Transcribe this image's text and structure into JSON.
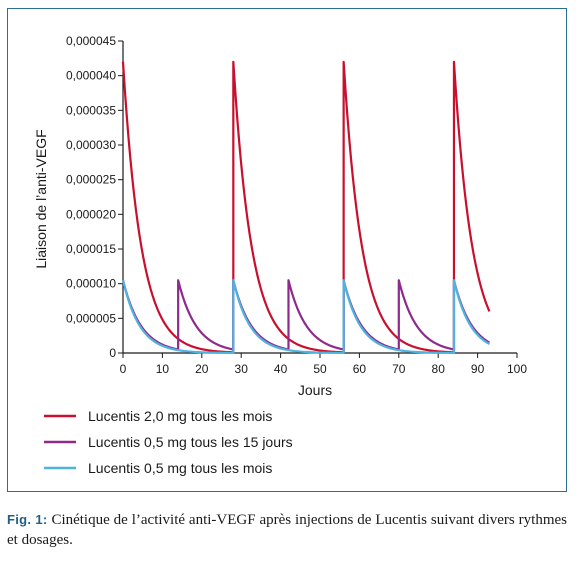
{
  "chart_data": {
    "type": "line",
    "xlabel": "Jours",
    "ylabel": "Liaison de l’anti-VEGF",
    "xlim": [
      0,
      100
    ],
    "ylim": [
      0,
      4.5e-05
    ],
    "x_ticks": [
      "0",
      "10",
      "20",
      "30",
      "40",
      "50",
      "60",
      "70",
      "80",
      "90",
      "100"
    ],
    "y_ticks": [
      "0",
      "0,000005",
      "0,000010",
      "0,000015",
      "0,000020",
      "0,000025",
      "0,000030",
      "0,000035",
      "0,000040",
      "0,000045"
    ],
    "grid": false,
    "legend_position": "bottom",
    "series": [
      {
        "name": "Lucentis 2,0 mg tous les mois",
        "color": "#c8102e",
        "dose_peak": 4.2e-05,
        "injection_days": [
          0,
          28,
          56,
          84
        ],
        "end_day": 93,
        "end_value": 6e-06
      },
      {
        "name": "Lucentis 0,5 mg tous les 15 jours",
        "color": "#8e2a8c",
        "dose_peak": 1.05e-05,
        "injection_days": [
          0,
          14,
          28,
          42,
          56,
          70,
          84
        ],
        "end_day": 93,
        "end_value": 1.5e-06
      },
      {
        "name": "Lucentis 0,5 mg tous les mois",
        "color": "#4fb3e0",
        "dose_peak": 1.05e-05,
        "injection_days": [
          0,
          28,
          56,
          84
        ],
        "end_day": 93,
        "end_value": 1.3e-06
      }
    ]
  },
  "caption": {
    "label": "Fig. 1:",
    "text": "Cinétique de l’activité anti-VEGF après injections de Lucentis suivant divers rythmes et dosages."
  }
}
